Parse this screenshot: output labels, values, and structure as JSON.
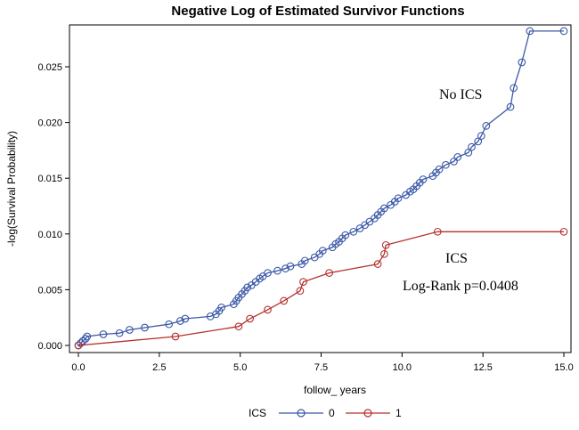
{
  "chart_data": {
    "type": "line",
    "title": "Negative Log of Estimated Survivor Functions",
    "xlabel": "follow_ years",
    "ylabel": "-log(Survival Probability)",
    "xlim": [
      0,
      15
    ],
    "ylim": [
      0,
      0.028
    ],
    "xticks": [
      "0.0",
      "2.5",
      "5.0",
      "7.5",
      "10.0",
      "12.5",
      "15.0"
    ],
    "yticks": [
      "0.000",
      "0.005",
      "0.010",
      "0.015",
      "0.020",
      "0.025"
    ],
    "grid": false,
    "legend": {
      "title": "ICS",
      "position": "bottom"
    },
    "annotations": [
      "No ICS",
      "ICS",
      "Log-Rank p=0.0408"
    ],
    "series": [
      {
        "name": "0",
        "color": "#3b58a6",
        "points": [
          [
            0.0,
            0.0
          ],
          [
            0.07,
            0.0002
          ],
          [
            0.14,
            0.0004
          ],
          [
            0.22,
            0.0006
          ],
          [
            0.27,
            0.0008
          ],
          [
            0.77,
            0.001
          ],
          [
            1.27,
            0.0011
          ],
          [
            1.58,
            0.0014
          ],
          [
            2.05,
            0.0016
          ],
          [
            2.8,
            0.0019
          ],
          [
            3.15,
            0.0022
          ],
          [
            3.3,
            0.0024
          ],
          [
            4.08,
            0.0026
          ],
          [
            4.25,
            0.0028
          ],
          [
            4.35,
            0.0031
          ],
          [
            4.42,
            0.0034
          ],
          [
            4.8,
            0.0037
          ],
          [
            4.88,
            0.004
          ],
          [
            4.95,
            0.0043
          ],
          [
            5.05,
            0.0046
          ],
          [
            5.14,
            0.0049
          ],
          [
            5.22,
            0.0052
          ],
          [
            5.35,
            0.0054
          ],
          [
            5.48,
            0.0057
          ],
          [
            5.6,
            0.006
          ],
          [
            5.7,
            0.0062
          ],
          [
            5.85,
            0.0065
          ],
          [
            6.15,
            0.0067
          ],
          [
            6.4,
            0.0069
          ],
          [
            6.55,
            0.0071
          ],
          [
            6.9,
            0.0073
          ],
          [
            7.0,
            0.0076
          ],
          [
            7.3,
            0.0079
          ],
          [
            7.45,
            0.0082
          ],
          [
            7.55,
            0.0085
          ],
          [
            7.85,
            0.0088
          ],
          [
            7.95,
            0.0091
          ],
          [
            8.05,
            0.0093
          ],
          [
            8.15,
            0.0096
          ],
          [
            8.25,
            0.0099
          ],
          [
            8.5,
            0.0102
          ],
          [
            8.7,
            0.0105
          ],
          [
            8.85,
            0.0108
          ],
          [
            9.0,
            0.0111
          ],
          [
            9.15,
            0.0114
          ],
          [
            9.25,
            0.0117
          ],
          [
            9.35,
            0.012
          ],
          [
            9.45,
            0.0123
          ],
          [
            9.65,
            0.0126
          ],
          [
            9.78,
            0.0129
          ],
          [
            9.88,
            0.0132
          ],
          [
            10.12,
            0.0135
          ],
          [
            10.25,
            0.0138
          ],
          [
            10.35,
            0.014
          ],
          [
            10.45,
            0.0143
          ],
          [
            10.55,
            0.0146
          ],
          [
            10.65,
            0.0149
          ],
          [
            10.95,
            0.0152
          ],
          [
            11.05,
            0.0155
          ],
          [
            11.15,
            0.0158
          ],
          [
            11.35,
            0.0162
          ],
          [
            11.6,
            0.0165
          ],
          [
            11.72,
            0.0169
          ],
          [
            12.05,
            0.0173
          ],
          [
            12.15,
            0.0178
          ],
          [
            12.35,
            0.0183
          ],
          [
            12.45,
            0.0188
          ],
          [
            12.6,
            0.0197
          ],
          [
            13.35,
            0.0214
          ],
          [
            13.45,
            0.0231
          ],
          [
            13.7,
            0.0254
          ],
          [
            13.95,
            0.0282
          ],
          [
            15.0,
            0.0282
          ]
        ]
      },
      {
        "name": "1",
        "color": "#b3312e",
        "points": [
          [
            0.0,
            0.0
          ],
          [
            3.0,
            0.0008
          ],
          [
            4.95,
            0.0017
          ],
          [
            5.3,
            0.0024
          ],
          [
            5.85,
            0.0032
          ],
          [
            6.35,
            0.004
          ],
          [
            6.85,
            0.0049
          ],
          [
            6.95,
            0.0057
          ],
          [
            7.75,
            0.0065
          ],
          [
            9.25,
            0.0073
          ],
          [
            9.45,
            0.0082
          ],
          [
            9.5,
            0.009
          ],
          [
            11.1,
            0.0102
          ],
          [
            15.0,
            0.0102
          ]
        ]
      }
    ]
  }
}
